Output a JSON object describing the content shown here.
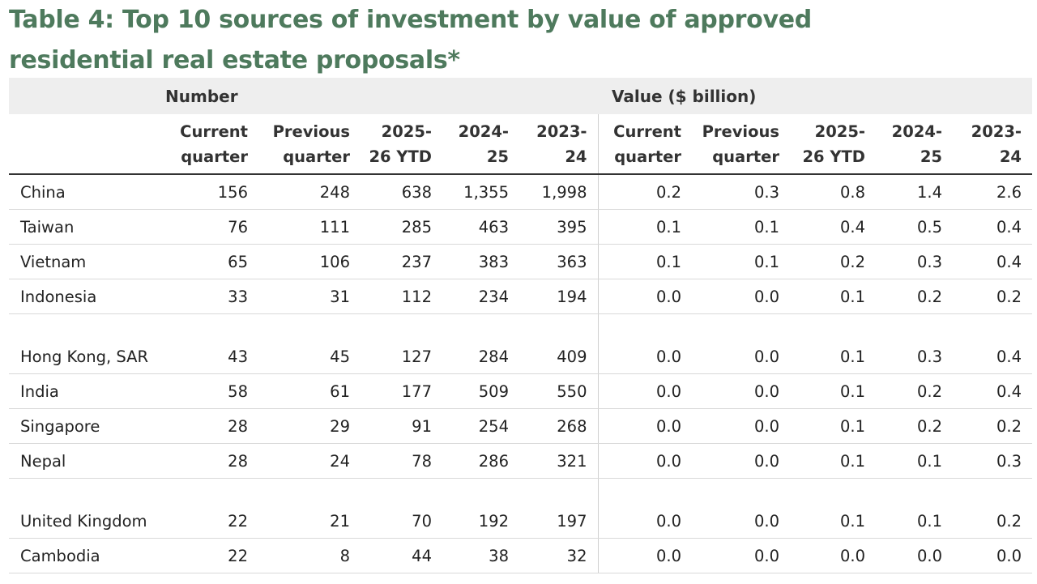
{
  "title": "Table 4: Top 10 sources of investment by value of approved residential real estate proposals*",
  "groups": {
    "number": "Number",
    "value": "Value ($ billion)"
  },
  "columns": [
    [
      "Current",
      "quarter"
    ],
    [
      "Previous",
      "quarter"
    ],
    [
      "2025-",
      "26 YTD"
    ],
    [
      "2024-",
      "25"
    ],
    [
      "2023-",
      "24"
    ],
    [
      "Current",
      "quarter"
    ],
    [
      "Previous",
      "quarter"
    ],
    [
      "2025-",
      "26 YTD"
    ],
    [
      "2024-",
      "25"
    ],
    [
      "2023-",
      "24"
    ]
  ],
  "rows": [
    {
      "country": "China",
      "values": [
        "156",
        "248",
        "638",
        "1,355",
        "1,998",
        "0.2",
        "0.3",
        "0.8",
        "1.4",
        "2.6"
      ]
    },
    {
      "country": "Taiwan",
      "values": [
        "76",
        "111",
        "285",
        "463",
        "395",
        "0.1",
        "0.1",
        "0.4",
        "0.5",
        "0.4"
      ]
    },
    {
      "country": "Vietnam",
      "values": [
        "65",
        "106",
        "237",
        "383",
        "363",
        "0.1",
        "0.1",
        "0.2",
        "0.3",
        "0.4"
      ]
    },
    {
      "country": "Indonesia",
      "values": [
        "33",
        "31",
        "112",
        "234",
        "194",
        "0.0",
        "0.0",
        "0.1",
        "0.2",
        "0.2"
      ]
    },
    {
      "country": "Hong Kong, SAR",
      "values": [
        "43",
        "45",
        "127",
        "284",
        "409",
        "0.0",
        "0.0",
        "0.1",
        "0.3",
        "0.4"
      ]
    },
    {
      "country": "India",
      "values": [
        "58",
        "61",
        "177",
        "509",
        "550",
        "0.0",
        "0.0",
        "0.1",
        "0.2",
        "0.4"
      ]
    },
    {
      "country": "Singapore",
      "values": [
        "28",
        "29",
        "91",
        "254",
        "268",
        "0.0",
        "0.0",
        "0.1",
        "0.2",
        "0.2"
      ]
    },
    {
      "country": "Nepal",
      "values": [
        "28",
        "24",
        "78",
        "286",
        "321",
        "0.0",
        "0.0",
        "0.1",
        "0.1",
        "0.3"
      ]
    },
    {
      "country": "United Kingdom",
      "values": [
        "22",
        "21",
        "70",
        "192",
        "197",
        "0.0",
        "0.0",
        "0.1",
        "0.1",
        "0.2"
      ]
    },
    {
      "country": "Cambodia",
      "values": [
        "22",
        "8",
        "44",
        "38",
        "32",
        "0.0",
        "0.0",
        "0.0",
        "0.0",
        "0.0"
      ]
    }
  ],
  "colors": {
    "title": "#4e7a5d",
    "header_band": "#eeeeee",
    "text": "#222222",
    "row_rule": "#d9d9d9"
  }
}
